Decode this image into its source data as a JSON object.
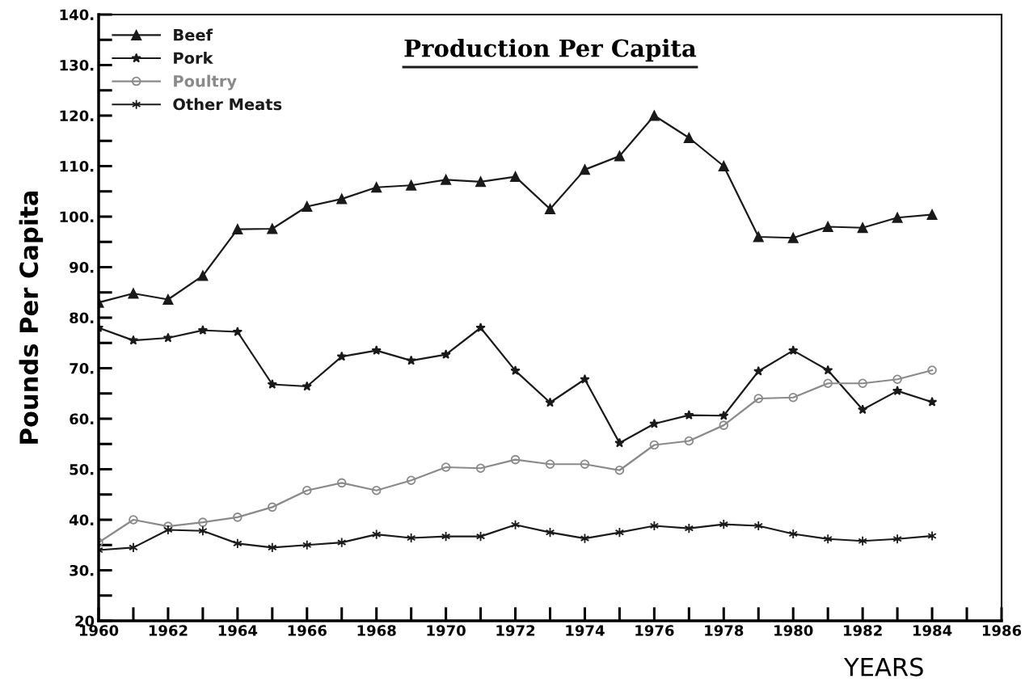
{
  "chart_data": {
    "type": "line",
    "title": "Production Per Capita",
    "xlabel": "YEARS",
    "ylabel": "Pounds Per Capita",
    "x": [
      1960,
      1961,
      1962,
      1963,
      1964,
      1965,
      1966,
      1967,
      1968,
      1969,
      1970,
      1971,
      1972,
      1973,
      1974,
      1975,
      1976,
      1977,
      1978,
      1979,
      1980,
      1981,
      1982,
      1983,
      1984
    ],
    "series": [
      {
        "name": "Beef",
        "color": "#1a1a1a",
        "marker": "triangle",
        "values": [
          83,
          84.8,
          83.6,
          88.3,
          97.5,
          97.6,
          102,
          103.5,
          105.8,
          106.2,
          107.3,
          106.9,
          107.9,
          101.5,
          109.3,
          112,
          120,
          115.6,
          110,
          96,
          95.8,
          98,
          97.8,
          99.8,
          100.4
        ]
      },
      {
        "name": "Pork",
        "color": "#1a1a1a",
        "marker": "star",
        "values": [
          78,
          75.5,
          76,
          77.5,
          77.2,
          66.8,
          66.4,
          72.3,
          73.5,
          71.5,
          72.7,
          78,
          69.5,
          63.2,
          67.8,
          55.2,
          59,
          60.7,
          60.6,
          69.4,
          73.5,
          69.6,
          61.8,
          65.5,
          63.3
        ]
      },
      {
        "name": "Poultry",
        "color": "#8a8a8a",
        "marker": "circle",
        "values": [
          35.5,
          40,
          38.7,
          39.5,
          40.5,
          42.5,
          45.8,
          47.3,
          45.8,
          47.8,
          50.4,
          50.2,
          51.9,
          51,
          51,
          49.8,
          54.8,
          55.6,
          58.7,
          64,
          64.2,
          67,
          67,
          67.8,
          69.6
        ]
      },
      {
        "name": "Other Meats",
        "color": "#1a1a1a",
        "marker": "cross",
        "values": [
          34,
          34.5,
          38,
          37.8,
          35.3,
          34.5,
          35,
          35.5,
          37.1,
          36.4,
          36.7,
          36.7,
          39,
          37.5,
          36.3,
          37.5,
          38.8,
          38.3,
          39.1,
          38.8,
          37.2,
          36.2,
          35.8,
          36.2,
          36.8
        ]
      }
    ],
    "xlim": [
      1960,
      1986
    ],
    "xticks": [
      1960,
      1962,
      1964,
      1966,
      1968,
      1970,
      1972,
      1974,
      1976,
      1978,
      1980,
      1982,
      1984,
      1986
    ],
    "ylim": [
      20,
      140
    ],
    "yticks": [
      {
        "value": 20,
        "label": "20"
      },
      {
        "value": 30,
        "label": "30."
      },
      {
        "value": 40,
        "label": "40."
      },
      {
        "value": 50,
        "label": "50."
      },
      {
        "value": 60,
        "label": "60."
      },
      {
        "value": 70,
        "label": "70."
      },
      {
        "value": 80,
        "label": "80."
      },
      {
        "value": 90,
        "label": "90."
      },
      {
        "value": 100,
        "label": "100."
      },
      {
        "value": 110,
        "label": "110."
      },
      {
        "value": 120,
        "label": "120."
      },
      {
        "value": 130,
        "label": "130."
      },
      {
        "value": 140,
        "label": "140."
      }
    ],
    "grid": false,
    "legend": "top left",
    "line_style": "solid"
  }
}
